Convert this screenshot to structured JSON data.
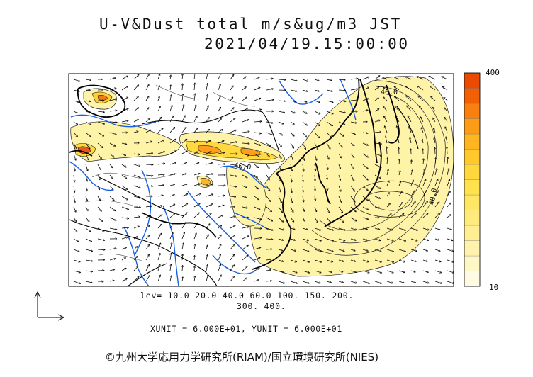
{
  "header": {
    "title": "U-V&Dust total m/s&ug/m3 JST",
    "datetime": "2021/04/19.15:00:00"
  },
  "legend": {
    "levels_line1": "lev= 10.0 20.0 40.0 60.0 100. 150. 200.",
    "levels_line2": "300. 400.",
    "units_line": "XUNIT = 6.000E+01, YUNIT = 6.000E+01",
    "colorbar_max": "400",
    "colorbar_min": "10",
    "colorbar_colors": [
      "#fffbe3",
      "#fff6c6",
      "#fff2ad",
      "#ffee92",
      "#ffeb7c",
      "#ffe765",
      "#ffe24e",
      "#ffd83e",
      "#ffc92e",
      "#ffb521",
      "#fd9c16",
      "#f97f0e",
      "#f26006",
      "#eb4a00"
    ]
  },
  "contour_labels": [
    "40.0",
    "40.0",
    "40.0"
  ],
  "credit": "©九州大学応用力学研究所(RIAM)/国立環境研究所(NIES)",
  "colors": {
    "coast": "#000000",
    "rivers": "#1560e8",
    "dust_light": "#fff3a8",
    "dust_heavy": "#e8401b"
  }
}
